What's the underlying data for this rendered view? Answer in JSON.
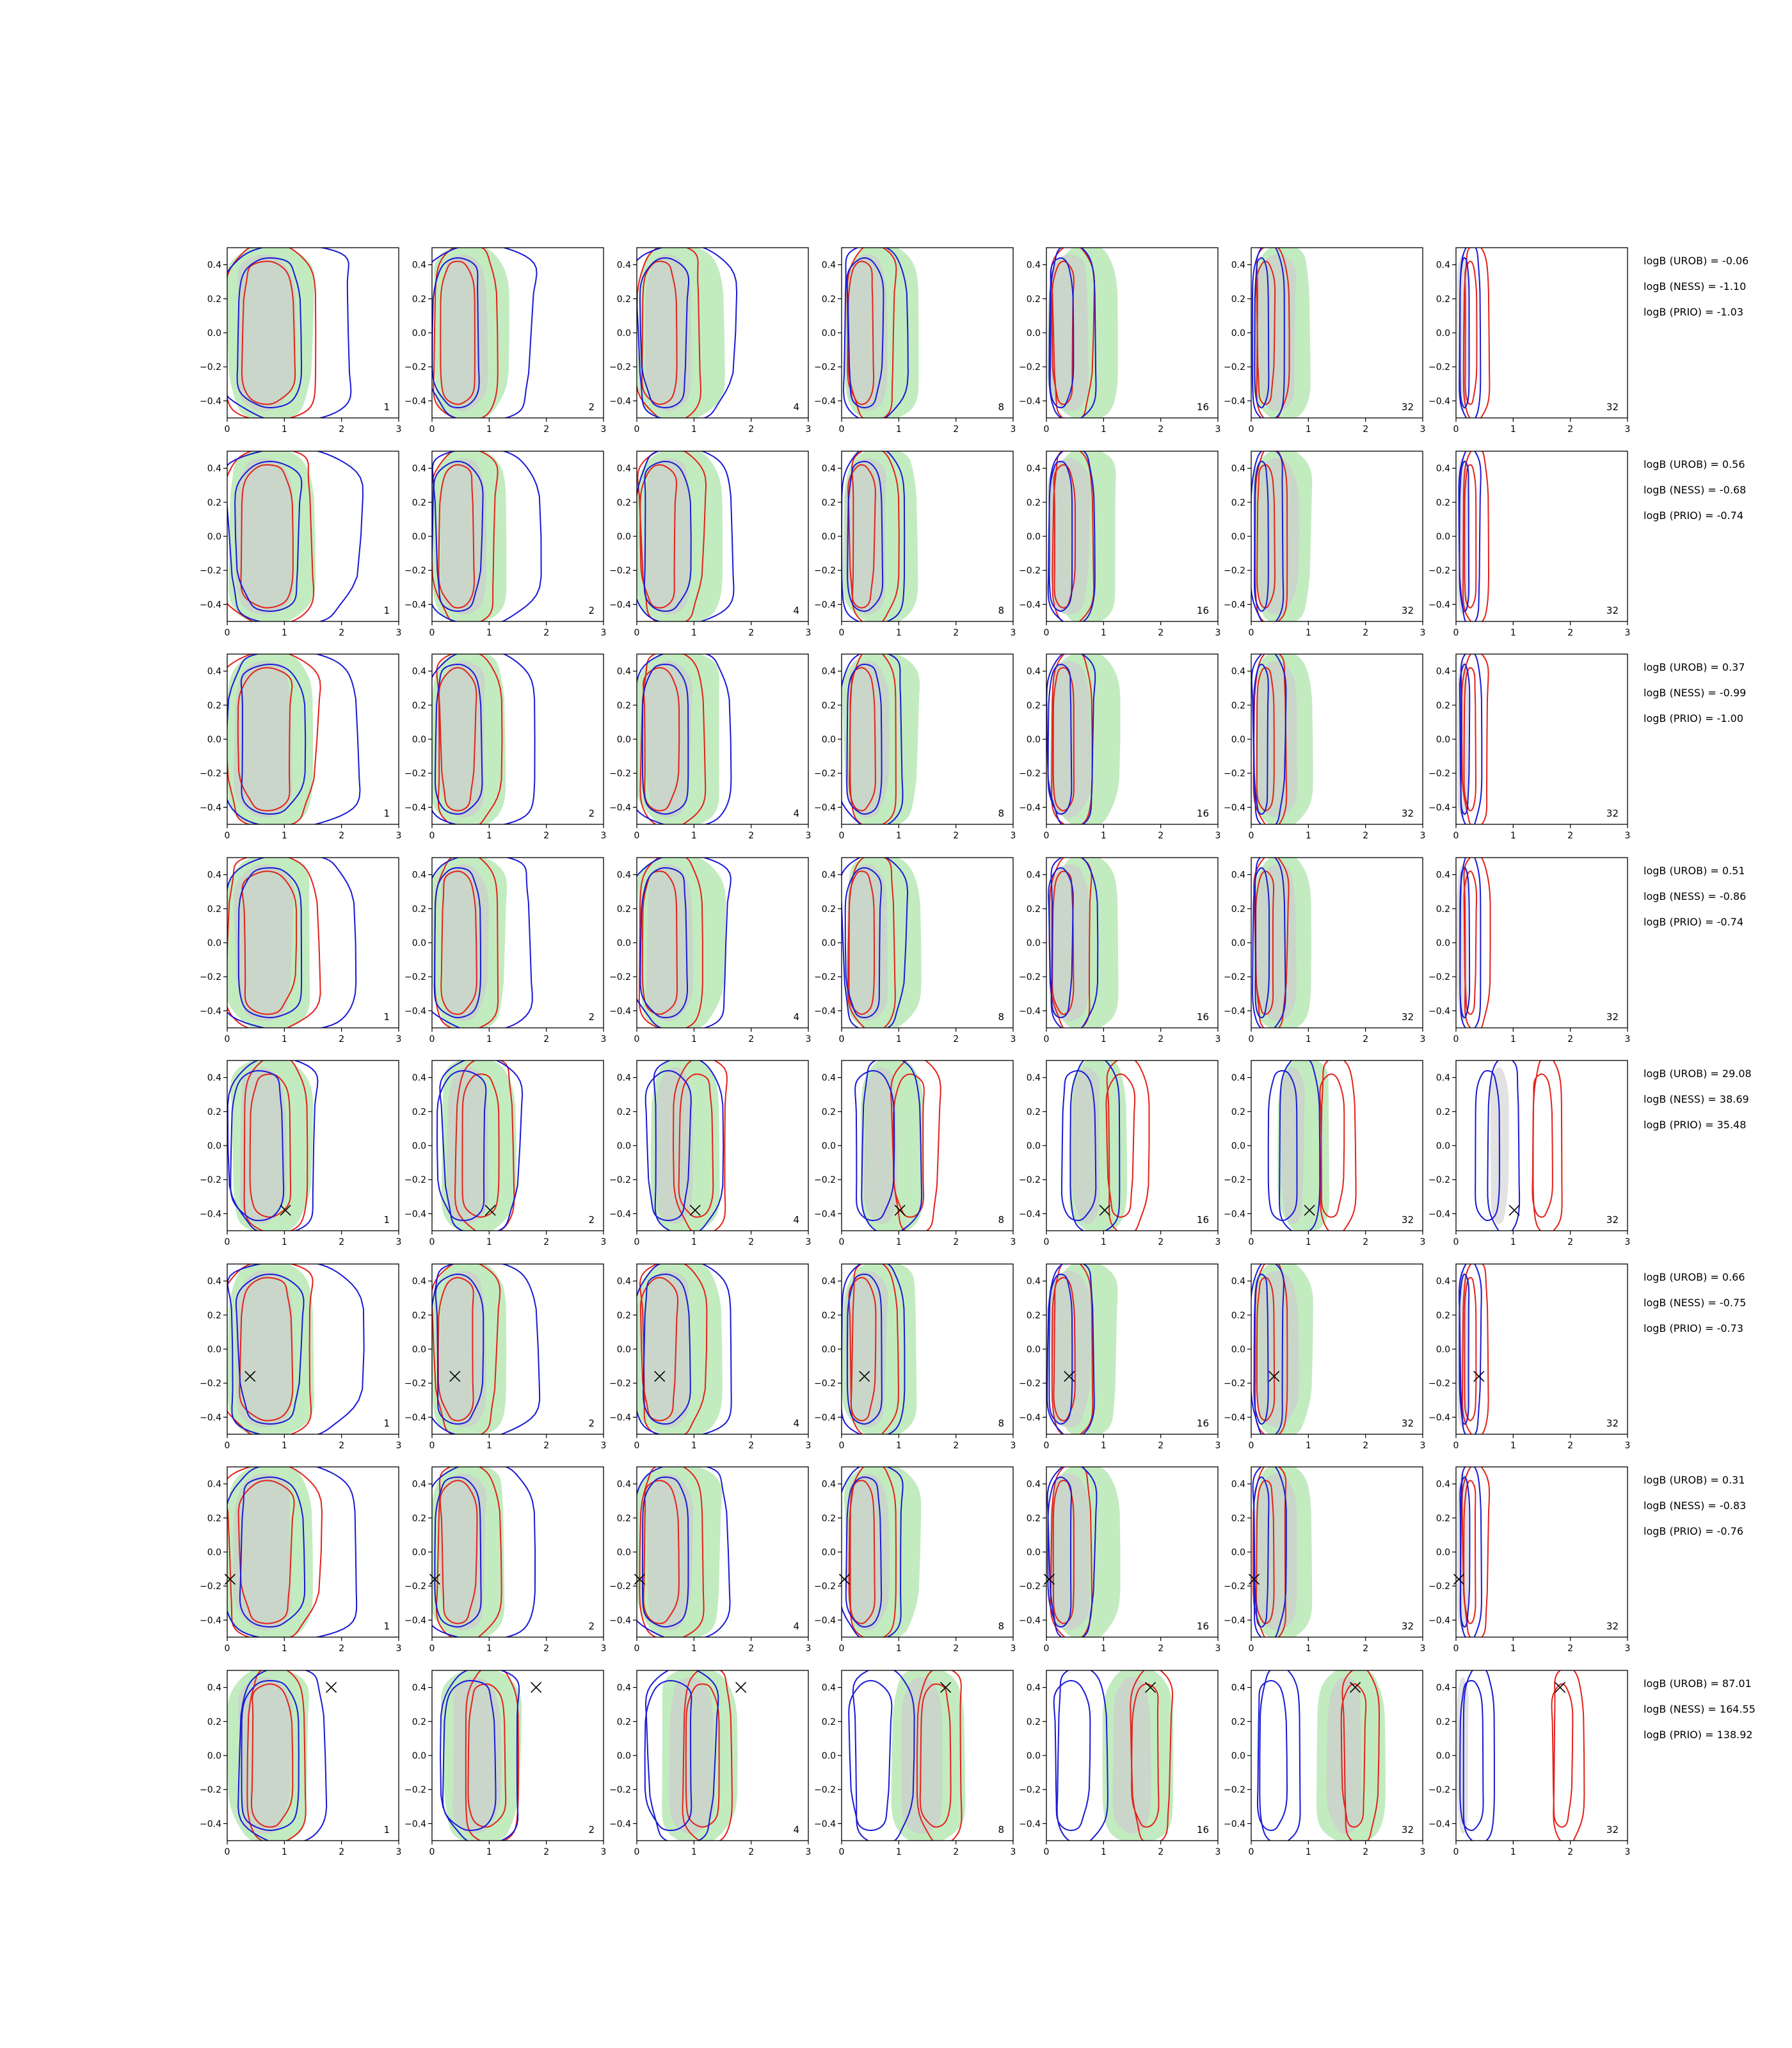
{
  "chart_data": {
    "type": "contour",
    "xlim": [
      0,
      3
    ],
    "ylim": [
      -0.5,
      0.5
    ],
    "xticks": [
      "0",
      "1",
      "2",
      "3"
    ],
    "yticks": [
      "0.4",
      "0.2",
      "0.0",
      "−0.2",
      "−0.4"
    ],
    "column_labels": [
      "1",
      "2",
      "4",
      "8",
      "16",
      "32",
      "32"
    ],
    "colors": {
      "green_fill": "#c3ebc0",
      "gray_fill": "#c9d6c9",
      "gray_fill_light": "#e2e2e2",
      "red": "#e3221b",
      "blue": "#1a1ad6",
      "marker": "#000000"
    },
    "rows": [
      {
        "annotations": [
          "logB (UROB) = -0.06",
          "logB (NESS) = -1.10",
          "logB (PRIO) = -1.03"
        ],
        "marker": null
      },
      {
        "annotations": [
          "logB (UROB) = 0.56",
          "logB (NESS) = -0.68",
          "logB (PRIO) = -0.74"
        ],
        "marker": null
      },
      {
        "annotations": [
          "logB (UROB) = 0.37",
          "logB (NESS) = -0.99",
          "logB (PRIO) = -1.00"
        ],
        "marker": null
      },
      {
        "annotations": [
          "logB (UROB) = 0.51",
          "logB (NESS) = -0.86",
          "logB (PRIO) = -0.74"
        ],
        "marker": null
      },
      {
        "annotations": [
          "logB (UROB) = 29.08",
          "logB (NESS) = 38.69",
          "logB (PRIO) = 35.48"
        ],
        "marker": [
          1.02,
          -0.38
        ]
      },
      {
        "annotations": [
          "logB (UROB) = 0.66",
          "logB (NESS) = -0.75",
          "logB (PRIO) = -0.73"
        ],
        "marker": [
          0.4,
          -0.16
        ]
      },
      {
        "annotations": [
          "logB (UROB) = 0.31",
          "logB (NESS) = -0.83",
          "logB (PRIO) = -0.76"
        ],
        "marker": [
          0.05,
          -0.16
        ]
      },
      {
        "annotations": [
          "logB (UROB) = 87.01",
          "logB (NESS) = 164.55",
          "logB (PRIO) = 138.92"
        ],
        "marker": [
          1.82,
          0.4
        ]
      }
    ]
  }
}
